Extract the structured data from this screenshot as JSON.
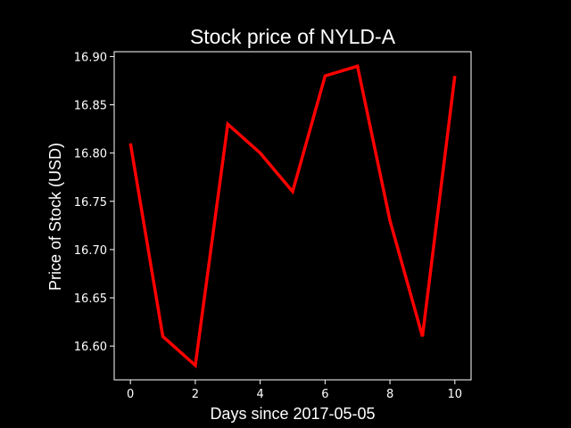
{
  "chart_data": {
    "type": "line",
    "title": "Stock price of NYLD-A",
    "xlabel": "Days since 2017-05-05",
    "ylabel": "Price of Stock (USD)",
    "x": [
      0,
      1,
      2,
      3,
      4,
      5,
      6,
      7,
      8,
      9,
      10
    ],
    "series": [
      {
        "values": [
          16.81,
          16.61,
          16.58,
          16.83,
          16.8,
          16.76,
          16.88,
          16.89,
          16.73,
          16.61,
          16.88
        ],
        "color": "#ff0000"
      }
    ],
    "xlim": [
      -0.5,
      10.5
    ],
    "ylim": [
      16.565,
      16.905
    ],
    "xticks": [
      0,
      2,
      4,
      6,
      8,
      10
    ],
    "yticks": [
      16.6,
      16.65,
      16.7,
      16.75,
      16.8,
      16.85,
      16.9
    ],
    "grid": false,
    "legend": "none",
    "background_color": "#000000",
    "axes_color": "#ffffff"
  }
}
